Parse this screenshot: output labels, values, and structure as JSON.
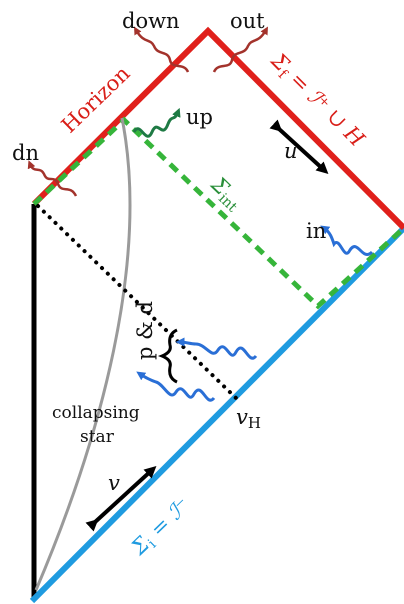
{
  "labels": {
    "down": "down",
    "out": "out",
    "horizon": "Horizon",
    "up": "up",
    "dn": "dn",
    "sigma_f": "Σf = ℐ⁺ ∪ H",
    "sigma_f_main": "Σ",
    "sigma_f_sub": "f",
    "sigma_f_rest": " = ℐ⁺ ∪ H",
    "u": "u",
    "sigma_int_main": "Σ",
    "sigma_int_sub": "int",
    "in": "in",
    "p_and_d": "p & d",
    "v_H_main": "v",
    "v_H_sub": "H",
    "collapsing_line1": "collapsing",
    "collapsing_line2": "star",
    "v": "v",
    "sigma_i_main": "Σ",
    "sigma_i_sub": "i",
    "sigma_i_rest": " = ℐ⁻"
  },
  "colors": {
    "future_boundary": "#e0201b",
    "past_boundary": "#1f9be0",
    "interior_surface": "#36b53a",
    "wave_red": "#a3332c",
    "wave_green": "#1e7a44",
    "wave_blue": "#2a6fd6",
    "collapsing_star": "#9a9a9a",
    "axis": "#000000"
  }
}
